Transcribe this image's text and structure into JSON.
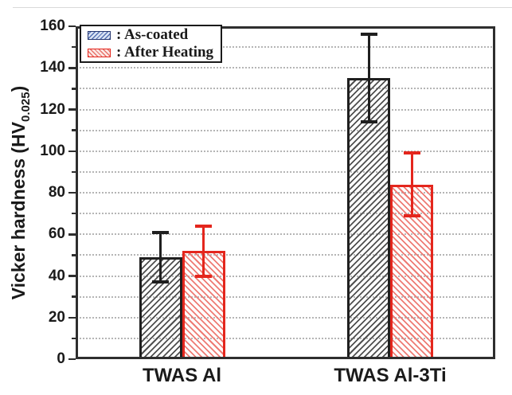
{
  "chart_data": {
    "type": "bar",
    "title": "",
    "ylabel": "Vicker hardness (HV0.025)",
    "ylabel_parts": {
      "main": "Vicker hardness (HV",
      "sub": "0.025",
      "close": ")"
    },
    "xlabel": "",
    "categories": [
      "TWAS Al",
      "TWAS Al-3Ti"
    ],
    "series": [
      {
        "name": "As-coated",
        "legend_label": ": As-coated",
        "values": [
          49,
          135
        ],
        "err_low": [
          12,
          21
        ],
        "err_high": [
          12,
          21
        ]
      },
      {
        "name": "After Heating",
        "legend_label": ": After Heating",
        "values": [
          52,
          84
        ],
        "err_low": [
          12,
          15
        ],
        "err_high": [
          12,
          15
        ]
      }
    ],
    "ylim": [
      0,
      160
    ],
    "ytick_major": 20,
    "ytick_minor": 10,
    "yticks": [
      0,
      20,
      40,
      60,
      80,
      100,
      120,
      140,
      160
    ],
    "grid": "dotted horizontal lines every 10 units",
    "legend_position": "top-left",
    "style": {
      "as_coated_border": "#1f1f1f",
      "as_coated_hatch": "#4f4f4f",
      "as_coated_hatch_direction": "forward-slash",
      "after_heating_border": "#e4261d",
      "after_heating_hatch": "#ee7b74",
      "after_heating_hatch_direction": "back-slash",
      "legend_as_coated_fill": "#dbe4f4",
      "legend_as_coated_hatch": "#5571b3",
      "legend_after_heating_fill": "#fbe9e7",
      "legend_after_heating_hatch": "#e8736b",
      "gridline_color": "#b5b5b5",
      "frame_color": "#2e2e2e",
      "background": "#ffffff"
    }
  }
}
